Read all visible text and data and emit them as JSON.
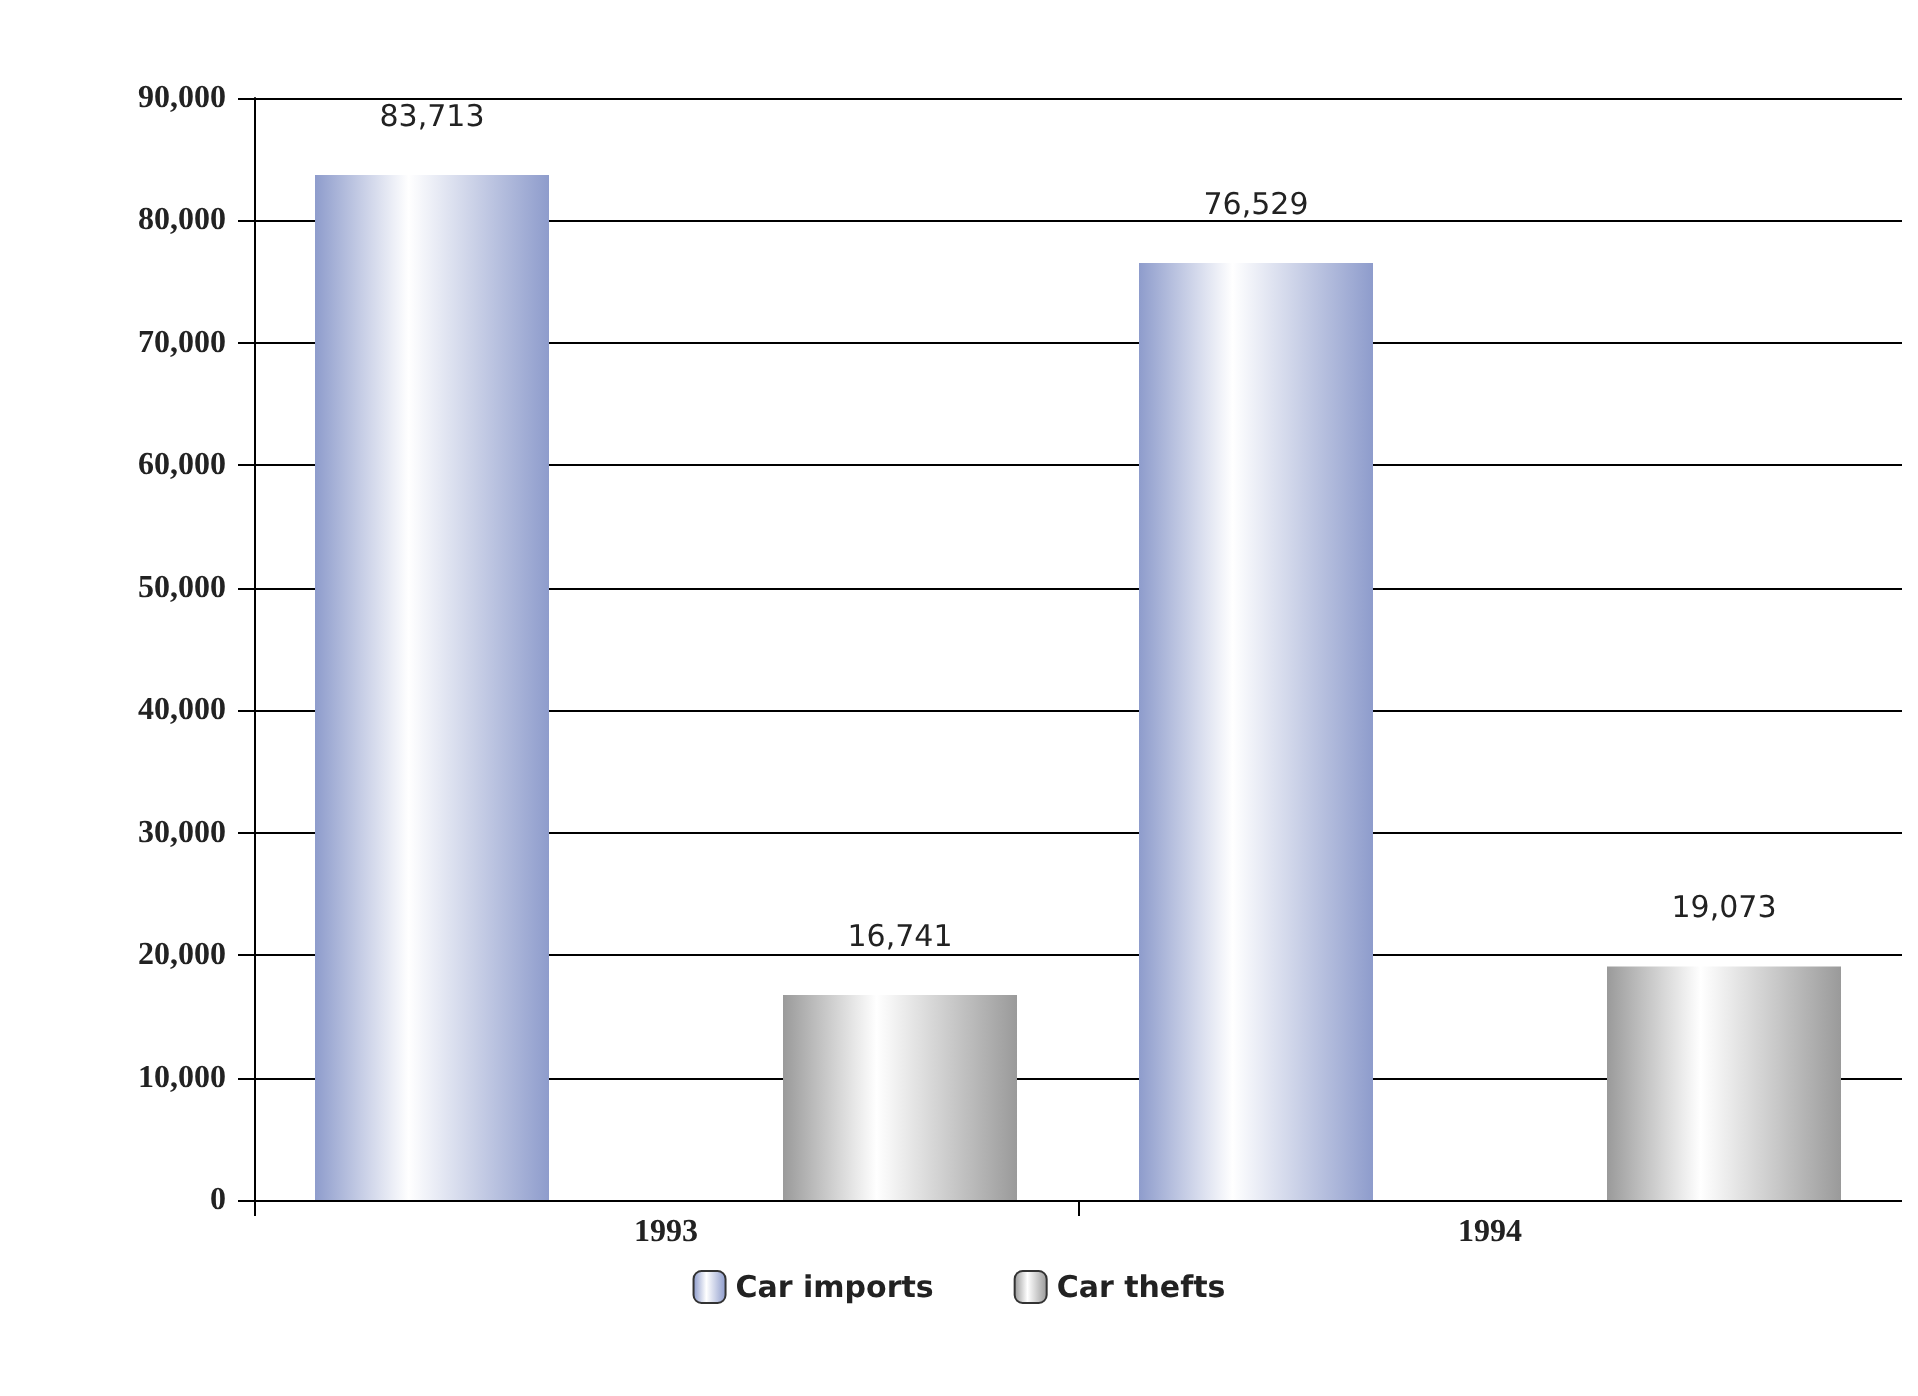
{
  "chart_data": {
    "type": "bar",
    "categories": [
      "1993",
      "1994"
    ],
    "series": [
      {
        "name": "Car imports",
        "color": "#8e9ccc",
        "values": [
          83713,
          76529
        ],
        "value_labels": [
          "83,713",
          "76,529"
        ]
      },
      {
        "name": "Car thefts",
        "color": "#9a9a9a",
        "values": [
          16741,
          19073
        ],
        "value_labels": [
          "16,741",
          "19,073"
        ]
      }
    ],
    "ylim": [
      0,
      90000
    ],
    "yticks": [
      0,
      {
        "value": 10000,
        "label": "10,000"
      },
      {
        "value": 20000,
        "label": "20,000"
      },
      {
        "value": 30000,
        "label": "30,000"
      },
      {
        "value": 40000,
        "label": "40,000"
      },
      {
        "value": 50000,
        "label": "50,000"
      },
      {
        "value": 60000,
        "label": "60,000"
      },
      {
        "value": 70000,
        "label": "70,000"
      },
      {
        "value": 80000,
        "label": "80,000"
      },
      {
        "value": 90000,
        "label": "90,000"
      }
    ],
    "grid": "y",
    "legend": "bottom"
  }
}
